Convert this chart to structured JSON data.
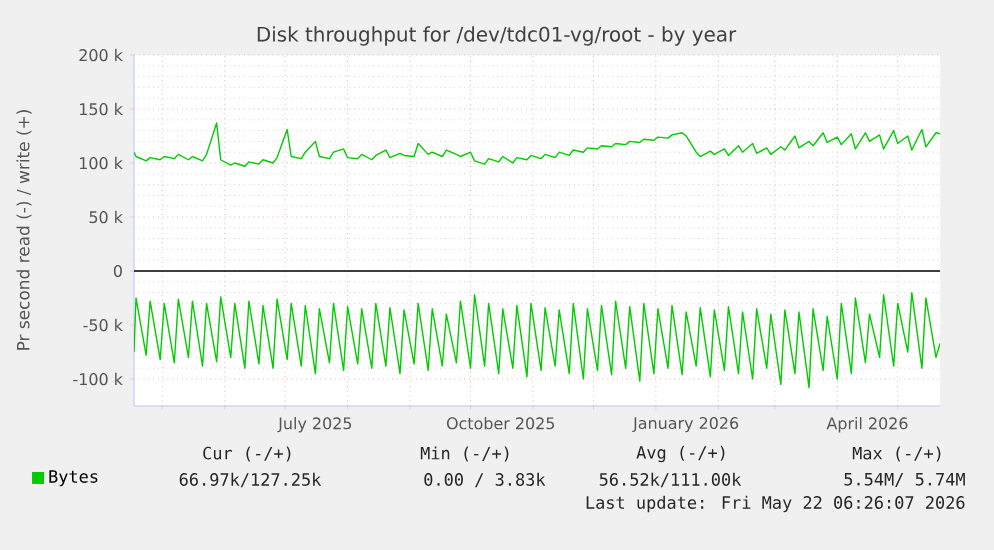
{
  "chart_data": {
    "type": "line",
    "title": "Disk throughput for /dev/tdc01-vg/root - by year",
    "ylabel": "Pr second read (-) / write (+)",
    "x": [
      "2025-04-17",
      "2025-04-18",
      "2025-04-23",
      "2025-04-25",
      "2025-04-30",
      "2025-05-02",
      "2025-05-07",
      "2025-05-09",
      "2025-05-14",
      "2025-05-16",
      "2025-05-21",
      "2025-05-23",
      "2025-05-28",
      "2025-05-30",
      "2025-06-04",
      "2025-06-06",
      "2025-06-11",
      "2025-06-13",
      "2025-06-18",
      "2025-06-20",
      "2025-06-25",
      "2025-06-27",
      "2025-07-02",
      "2025-07-04",
      "2025-07-09",
      "2025-07-11",
      "2025-07-16",
      "2025-07-18",
      "2025-07-23",
      "2025-07-25",
      "2025-07-30",
      "2025-08-01",
      "2025-08-06",
      "2025-08-08",
      "2025-08-13",
      "2025-08-15",
      "2025-08-20",
      "2025-08-22",
      "2025-08-27",
      "2025-08-29",
      "2025-09-03",
      "2025-09-05",
      "2025-09-10",
      "2025-09-12",
      "2025-09-17",
      "2025-09-19",
      "2025-09-24",
      "2025-09-26",
      "2025-10-01",
      "2025-10-03",
      "2025-10-08",
      "2025-10-10",
      "2025-10-15",
      "2025-10-17",
      "2025-10-22",
      "2025-10-24",
      "2025-10-29",
      "2025-10-31",
      "2025-11-05",
      "2025-11-07",
      "2025-11-12",
      "2025-11-14",
      "2025-11-19",
      "2025-11-21",
      "2025-11-26",
      "2025-11-28",
      "2025-12-03",
      "2025-12-05",
      "2025-12-10",
      "2025-12-12",
      "2025-12-17",
      "2025-12-19",
      "2025-12-24",
      "2025-12-26",
      "2025-12-31",
      "2026-01-02",
      "2026-01-07",
      "2026-01-09",
      "2026-01-14",
      "2026-01-16",
      "2026-01-21",
      "2026-01-23",
      "2026-01-28",
      "2026-01-30",
      "2026-02-04",
      "2026-02-06",
      "2026-02-11",
      "2026-02-13",
      "2026-02-18",
      "2026-02-20",
      "2026-02-25",
      "2026-02-27",
      "2026-03-04",
      "2026-03-06",
      "2026-03-11",
      "2026-03-13",
      "2026-03-18",
      "2026-03-20",
      "2026-03-25",
      "2026-03-27",
      "2026-04-01",
      "2026-04-03",
      "2026-04-08",
      "2026-04-10",
      "2026-04-15",
      "2026-04-17",
      "2026-04-22",
      "2026-04-24",
      "2026-04-29",
      "2026-05-01",
      "2026-05-06",
      "2026-05-08",
      "2026-05-13",
      "2026-05-15",
      "2026-05-20",
      "2026-05-22"
    ],
    "series": [
      {
        "name": "Bytes",
        "color": "#00cc00",
        "values": [
          110000,
          106000,
          102000,
          105000,
          103000,
          106000,
          104000,
          108000,
          103000,
          106000,
          102000,
          108000,
          137000,
          103000,
          98000,
          100000,
          97000,
          101000,
          99000,
          103000,
          100000,
          105000,
          131000,
          106000,
          104000,
          110000,
          120000,
          106000,
          104000,
          110000,
          113000,
          105000,
          104000,
          108000,
          103000,
          107000,
          112000,
          105000,
          109000,
          107000,
          106000,
          118000,
          108000,
          110000,
          106000,
          112000,
          108000,
          106000,
          110000,
          102000,
          99000,
          104000,
          101000,
          106000,
          100000,
          105000,
          103000,
          107000,
          104000,
          108000,
          105000,
          110000,
          107000,
          112000,
          110000,
          114000,
          113000,
          116000,
          115000,
          118000,
          117000,
          120000,
          119000,
          122000,
          121000,
          124000,
          123000,
          126000,
          128000,
          125000,
          110000,
          106000,
          111000,
          108000,
          113000,
          107000,
          116000,
          110000,
          118000,
          109000,
          114000,
          108000,
          115000,
          112000,
          125000,
          114000,
          120000,
          116000,
          128000,
          119000,
          124000,
          117000,
          127000,
          113000,
          128000,
          120000,
          126000,
          113000,
          130000,
          118000,
          125000,
          112000,
          131000,
          115000,
          128000,
          127000
        ]
      },
      {
        "color": "#00cc00",
        "values": [
          -75000,
          -25000,
          -78000,
          -28000,
          -82000,
          -30000,
          -85000,
          -26000,
          -80000,
          -28000,
          -88000,
          -30000,
          -84000,
          -24000,
          -80000,
          -30000,
          -90000,
          -28000,
          -86000,
          -32000,
          -90000,
          -26000,
          -82000,
          -30000,
          -88000,
          -32000,
          -95000,
          -35000,
          -85000,
          -30000,
          -92000,
          -33000,
          -86000,
          -35000,
          -90000,
          -30000,
          -88000,
          -34000,
          -95000,
          -36000,
          -86000,
          -30000,
          -92000,
          -35000,
          -88000,
          -40000,
          -85000,
          -28000,
          -90000,
          -22000,
          -88000,
          -30000,
          -95000,
          -35000,
          -90000,
          -32000,
          -98000,
          -30000,
          -92000,
          -34000,
          -88000,
          -36000,
          -95000,
          -30000,
          -100000,
          -35000,
          -92000,
          -32000,
          -96000,
          -28000,
          -90000,
          -33000,
          -102000,
          -30000,
          -95000,
          -35000,
          -90000,
          -32000,
          -96000,
          -38000,
          -88000,
          -34000,
          -98000,
          -36000,
          -92000,
          -33000,
          -95000,
          -38000,
          -100000,
          -35000,
          -90000,
          -40000,
          -105000,
          -36000,
          -95000,
          -38000,
          -108000,
          -35000,
          -92000,
          -42000,
          -100000,
          -30000,
          -95000,
          -25000,
          -85000,
          -40000,
          -80000,
          -22000,
          -88000,
          -30000,
          -75000,
          -20000,
          -90000,
          -25000,
          -80000,
          -67000
        ]
      }
    ],
    "xlim": [
      "2025-04-17",
      "2026-05-22"
    ],
    "xticks": [
      {
        "value": "2025-05-01",
        "label": null
      },
      {
        "value": "2025-06-01",
        "label": null
      },
      {
        "value": "2025-07-01",
        "label": null
      },
      {
        "value": "2025-08-01",
        "label": null
      },
      {
        "value": "2025-09-01",
        "label": null
      },
      {
        "value": "2025-10-01",
        "label": null
      },
      {
        "value": "2025-11-01",
        "label": null
      },
      {
        "value": "2025-12-01",
        "label": null
      },
      {
        "value": "2026-01-01",
        "label": null
      },
      {
        "value": "2026-02-01",
        "label": null
      },
      {
        "value": "2026-03-01",
        "label": null
      },
      {
        "value": "2026-04-01",
        "label": null
      },
      {
        "value": "2026-05-01",
        "label": null
      },
      {
        "value": "2025-07-16",
        "label": "July 2025"
      },
      {
        "value": "2025-10-16",
        "label": "October 2025"
      },
      {
        "value": "2026-01-16",
        "label": "January 2026"
      },
      {
        "value": "2026-04-16",
        "label": "April 2026"
      }
    ],
    "ylim": [
      -125000,
      200000
    ],
    "yticks": [
      {
        "value": -100000,
        "label": "-100 k"
      },
      {
        "value": -50000,
        "label": "-50 k"
      },
      0,
      {
        "value": 50000,
        "label": "50 k"
      },
      {
        "value": 100000,
        "label": "100 k"
      },
      {
        "value": 150000,
        "label": "150 k"
      },
      {
        "value": 200000,
        "label": "200 k"
      }
    ],
    "ref_lines": [
      {
        "axis": "y",
        "value": 0,
        "color": "#000000"
      }
    ],
    "grid": true,
    "legend": "bottom left",
    "annotations": [
      "Cur (-/+)",
      "Min (-/+)",
      "Avg (-/+)",
      "Max (-/+)",
      "66.97k/127.25k",
      "0.00 / 3.83k",
      "56.52k/111.00k",
      "5.54M/ 5.74M",
      "Last update: Fri May 22 06:26:07 2026"
    ]
  }
}
